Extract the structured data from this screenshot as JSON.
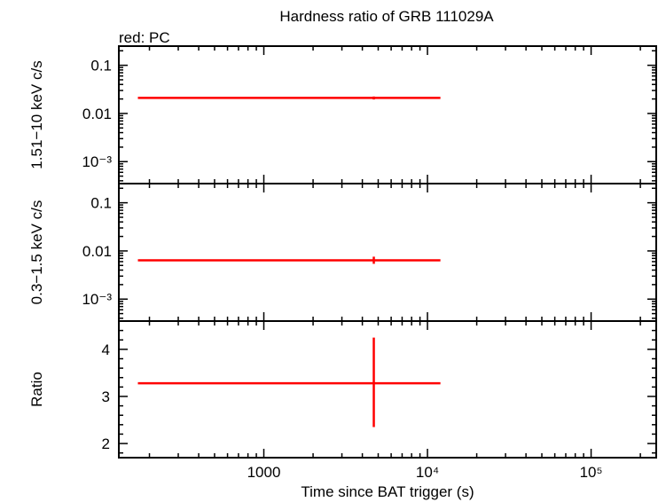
{
  "chart_data": [
    {
      "type": "scatter",
      "panel": "hard",
      "title": "Hardness ratio of GRB 111029A",
      "subtitle": "red: PC",
      "xscale": "log",
      "yscale": "log",
      "ylabel": "1.51−10 keV c/s",
      "ytick_labels": [
        "0.1",
        "0.01",
        "10⁻³"
      ],
      "ylim": [
        0.00035,
        0.25
      ],
      "series": [
        {
          "color": "#ff0000",
          "points": [
            {
              "x": 4700,
              "y": 0.021,
              "xerr": [
                170,
                12000
              ],
              "yerr": [
                0.0195,
                0.0225
              ]
            }
          ]
        }
      ]
    },
    {
      "type": "scatter",
      "panel": "soft",
      "xscale": "log",
      "yscale": "log",
      "ylabel": "0.3−1.5 keV c/s",
      "ytick_labels": [
        "0.1",
        "0.01",
        "10⁻³"
      ],
      "ylim": [
        0.00035,
        0.25
      ],
      "series": [
        {
          "color": "#ff0000",
          "points": [
            {
              "x": 4700,
              "y": 0.0064,
              "xerr": [
                170,
                12000
              ],
              "yerr": [
                0.0054,
                0.0076
              ]
            }
          ]
        }
      ]
    },
    {
      "type": "scatter",
      "panel": "ratio",
      "xscale": "log",
      "ylabel": "Ratio",
      "xlabel": "Time since BAT trigger (s)",
      "ytick_labels": [
        "2",
        "3",
        "4"
      ],
      "ylim": [
        1.7,
        4.6
      ],
      "xlim": [
        130,
        250000
      ],
      "xtick_labels": [
        "1000",
        "10⁴",
        "10⁵"
      ],
      "series": [
        {
          "color": "#ff0000",
          "points": [
            {
              "x": 4700,
              "y": 3.28,
              "xerr": [
                170,
                12000
              ],
              "yerr": [
                2.35,
                4.25
              ]
            }
          ]
        }
      ]
    }
  ]
}
